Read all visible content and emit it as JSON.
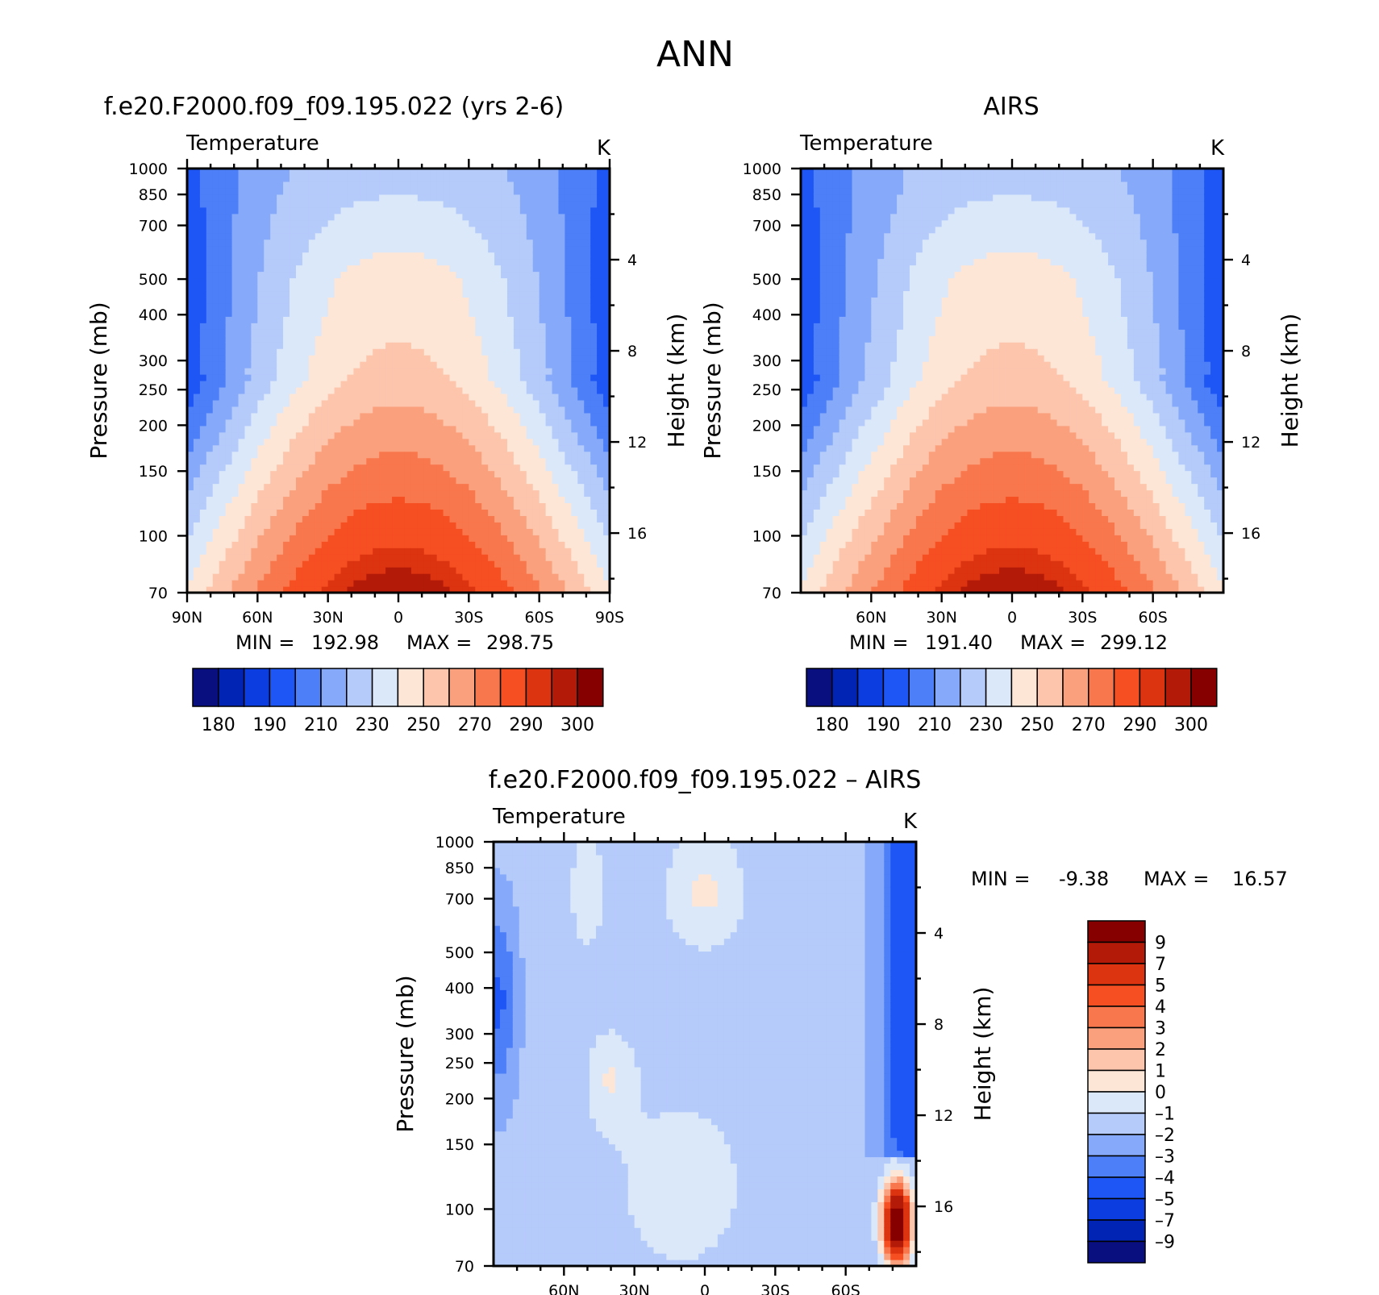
{
  "figure": {
    "main_title": "ANN",
    "colors": {
      "abs": [
        "#0a0f80",
        "#0224b4",
        "#0b3de0",
        "#1e56f5",
        "#4c7ff8",
        "#86aaf9",
        "#b5cbfa",
        "#dbe8fa",
        "#fde6d6",
        "#fcc5ac",
        "#fba07c",
        "#f9774c",
        "#f64f22",
        "#dc3310",
        "#b31a08",
        "#870000"
      ],
      "diff": [
        "#0a0f80",
        "#0224b4",
        "#0b3de0",
        "#1e56f5",
        "#4c7ff8",
        "#86aaf9",
        "#b5cbfa",
        "#dbe8fa",
        "#fde6d6",
        "#fcc5ac",
        "#fba07c",
        "#f9774c",
        "#f64f22",
        "#dc3310",
        "#b31a08",
        "#870000"
      ]
    }
  },
  "chart_data": [
    {
      "type": "heatmap",
      "title": "f.e20.F2000.f09_f09.195.022 (yrs 2-6)",
      "variable": "Temperature",
      "units": "K",
      "xlabel": "",
      "ylabel": "Pressure (mb)",
      "ylabel_right": "Height (km)",
      "x_ticks": [
        "90N",
        "60N",
        "30N",
        "0",
        "30S",
        "60S",
        "90S"
      ],
      "x_tick_values": [
        90,
        60,
        30,
        0,
        -30,
        -60,
        -90
      ],
      "xlim": [
        90,
        -90
      ],
      "y_ticks": [
        70,
        100,
        150,
        200,
        250,
        300,
        400,
        500,
        700,
        850,
        1000
      ],
      "ylim": [
        1000,
        70
      ],
      "y_scale": "log",
      "right_ticks": [
        4,
        8,
        12,
        16
      ],
      "min_label": "MIN =",
      "min_value": "192.98",
      "max_label": "MAX =",
      "max_value": "298.75",
      "colorbar_labels": [
        "180",
        "190",
        "210",
        "230",
        "250",
        "270",
        "290",
        "300"
      ],
      "colorbar_orientation": "horizontal",
      "levels": [
        180,
        185,
        190,
        200,
        210,
        220,
        230,
        240,
        250,
        260,
        270,
        280,
        290,
        295,
        300
      ]
    },
    {
      "type": "heatmap",
      "title": "AIRS",
      "variable": "Temperature",
      "units": "K",
      "xlabel": "",
      "ylabel": "Pressure (mb)",
      "ylabel_right": "Height (km)",
      "x_ticks": [
        "60N",
        "30N",
        "0",
        "30S",
        "60S"
      ],
      "x_tick_values": [
        60,
        30,
        0,
        -30,
        -60
      ],
      "xlim": [
        90,
        -90
      ],
      "y_ticks": [
        70,
        100,
        150,
        200,
        250,
        300,
        400,
        500,
        700,
        850,
        1000
      ],
      "ylim": [
        1000,
        70
      ],
      "y_scale": "log",
      "right_ticks": [
        4,
        8,
        12,
        16
      ],
      "min_label": "MIN =",
      "min_value": "191.40",
      "max_label": "MAX =",
      "max_value": "299.12",
      "colorbar_labels": [
        "180",
        "190",
        "210",
        "230",
        "250",
        "270",
        "290",
        "300"
      ],
      "colorbar_orientation": "horizontal",
      "levels": [
        180,
        185,
        190,
        200,
        210,
        220,
        230,
        240,
        250,
        260,
        270,
        280,
        290,
        295,
        300
      ]
    },
    {
      "type": "heatmap",
      "title": "f.e20.F2000.f09_f09.195.022 – AIRS",
      "variable": "Temperature",
      "units": "K",
      "xlabel": "",
      "ylabel": "Pressure (mb)",
      "ylabel_right": "Height (km)",
      "x_ticks": [
        "60N",
        "30N",
        "0",
        "30S",
        "60S"
      ],
      "x_tick_values": [
        60,
        30,
        0,
        -30,
        -60
      ],
      "xlim": [
        90,
        -90
      ],
      "y_ticks": [
        70,
        100,
        150,
        200,
        250,
        300,
        400,
        500,
        700,
        850,
        1000
      ],
      "ylim": [
        1000,
        70
      ],
      "y_scale": "log",
      "right_ticks": [
        4,
        8,
        12,
        16
      ],
      "min_label": "MIN =",
      "min_value": "-9.38",
      "max_label": "MAX =",
      "max_value": "16.57",
      "colorbar_labels": [
        "9",
        "7",
        "5",
        "4",
        "3",
        "2",
        "1",
        "0",
        "–1",
        "–2",
        "–3",
        "–4",
        "–5",
        "–7",
        "–9"
      ],
      "colorbar_orientation": "vertical",
      "levels": [
        -9,
        -7,
        -5,
        -4,
        -3,
        -2,
        -1,
        0,
        1,
        2,
        3,
        4,
        5,
        7,
        9
      ]
    }
  ]
}
